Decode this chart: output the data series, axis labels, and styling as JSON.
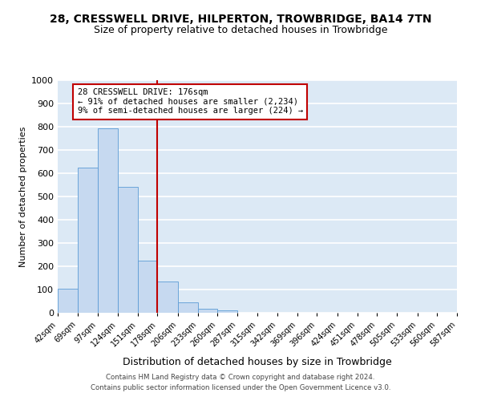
{
  "title": "28, CRESSWELL DRIVE, HILPERTON, TROWBRIDGE, BA14 7TN",
  "subtitle": "Size of property relative to detached houses in Trowbridge",
  "xlabel": "Distribution of detached houses by size in Trowbridge",
  "ylabel": "Number of detached properties",
  "footnote1": "Contains HM Land Registry data © Crown copyright and database right 2024.",
  "footnote2": "Contains public sector information licensed under the Open Government Licence v3.0.",
  "annotation_line1": "28 CRESSWELL DRIVE: 176sqm",
  "annotation_line2": "← 91% of detached houses are smaller (2,234)",
  "annotation_line3": "9% of semi-detached houses are larger (224) →",
  "bin_edges": [
    42,
    69,
    97,
    124,
    151,
    178,
    206,
    233,
    260,
    287,
    315,
    342,
    369,
    396,
    424,
    451,
    478,
    505,
    533,
    560,
    587
  ],
  "bar_heights": [
    104,
    625,
    793,
    542,
    224,
    135,
    45,
    18,
    10,
    0,
    0,
    0,
    0,
    0,
    0,
    0,
    0,
    0,
    0,
    0
  ],
  "bar_color": "#c6d9f0",
  "bar_edgecolor": "#5b9bd5",
  "vline_color": "#c00000",
  "vline_x": 178,
  "annotation_box_edgecolor": "#c00000",
  "ylim": [
    0,
    1000
  ],
  "yticks": [
    0,
    100,
    200,
    300,
    400,
    500,
    600,
    700,
    800,
    900,
    1000
  ],
  "bg_color": "#dce9f5",
  "grid_color": "#ffffff",
  "title_fontsize": 10,
  "subtitle_fontsize": 9,
  "tick_label_fontsize": 7,
  "ylabel_fontsize": 8,
  "xlabel_fontsize": 9
}
